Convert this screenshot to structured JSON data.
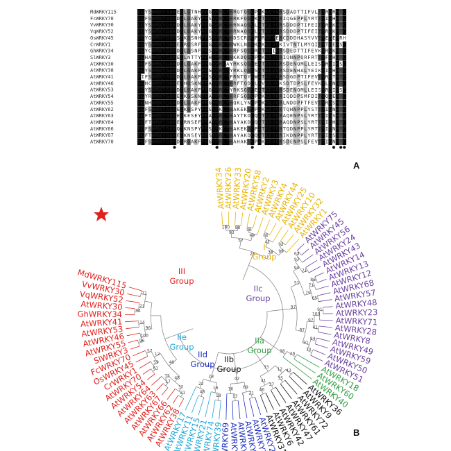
{
  "panel_a": {
    "label": "A",
    "sequences": [
      {
        "name": "MdWRKY115",
        "seq": "DGYSWRKYGQKEILGTNHPRGYYRCTHRGTQGCPAKKQVQRSDADTTIFVLTYRGRHTC"
      },
      {
        "name": "FcWRKY70",
        "seq": "DGFSWRKYGQKDILGAKYPRSYYRCTHRKFQGCKATKQVQRIQGEPPLYRTTYIGHHTC"
      },
      {
        "name": "VvWRKY30",
        "seq": "DGYSWRKYGQKDILGAKYPRGYYRCTHRNAQGCLATKQVQRSDDDPTIFEITYRGKHTC"
      },
      {
        "name": "VqWRKY52",
        "seq": "DGYSWRKYGQKDILGAKYPRGYYRCTHRNAQGCLATKQVQRSDDDPTIFEITYRGKHTC"
      },
      {
        "name": "OsWRKY45",
        "seq": "DGYQWRKYGQKSIKGSNHPRSYYRCTHDSCRGCPARKQVERCDDDHASYVVTYEGEHRH"
      },
      {
        "name": "CrWRKY1",
        "seq": "DGYSWRKYGQKEIRGSRFPRGYYRCTHWKLNGCKAKKQVQKIVTNTLMYQITYTGEHSC"
      },
      {
        "name": "GhWRKY34",
        "seq": "DGYCWRKYGQKDILGSNFPRSYYRCTHRFSQGCRATKQIQRSDEDTTIFEVKYRGKHTC"
      },
      {
        "name": "SlWRKY3",
        "seq": "DGHAWRKYGQKEILNTTYPRHYYRCTHKKDQGCPAKKQVQRIQNNPQRFRTTYFGHHTC"
      },
      {
        "name": "AtWRKY30",
        "seq": "DGFSWRKYGQKDILGAKFPRGYYRCAYRKSQGCEATKQVQRSDENQMLLEISYRGIHSC"
      },
      {
        "name": "AtWRKY38",
        "seq": "DGYSWRKYGQKDILGAKFPRGYYRCTYRKLQGCSATKQVQRSDENHALYEIKYIGHHTC"
      },
      {
        "name": "AtWRKY41",
        "seq": "DIFSWRKYGQKDILGAKFPRSYYRCTFRNTQYCWATKQVQRSDGDPTIFEVTYRGTHTC"
      },
      {
        "name": "AtWRKY46",
        "seq": "DGHCWRKYGQKEIHGSKNPRAYYRCTHRFTQDCLAVKQVQKSDTDPSLFEVKYLGNHTC"
      },
      {
        "name": "AtWRKY53",
        "seq": "DGYSWRKYGQKDILGAKFPRGYYRCTYRKSQGCEATKQVQRSDENQMLLEISYRGIHSC"
      },
      {
        "name": "AtWRKY54",
        "seq": "DGYRWRKYGQKEIKGSKNPRAYYRCTHRFSQGCPAKKQVQRIQDDPSMFDITYQGEHTC"
      },
      {
        "name": "AtWRKY55",
        "seq": "DGNHWRKYGQKDILGAKFPRGYYRCTHQKLYNCPAKKQVQRLNDDPFTFEVTYRGSHTC"
      },
      {
        "name": "AtWRKY62",
        "seq": "DGFSWRKYGQKEIKGSPYPRSYYKCTHAKEKGCPAKKQVQRTQHNPPLYSTTYIGNHTC"
      },
      {
        "name": "AtWRKY63",
        "seq": "DGFTWRKYGQKEIKESEYPRAYYRCTHAYTKDCQATKQVQRAQENPSLYRTTYIGSHTC"
      },
      {
        "name": "AtWRKY64",
        "seq": "DGFTWRKYGQKEIRNSEFPRAYYRCTHAYAKDCQATKQVQRAQDNPSLYRTTYIGHHTC"
      },
      {
        "name": "AtWRKY66",
        "seq": "DGFSWRKYGQKQIKNSPYPRSYYKCTHAKEKGCPATKQVQRTQDNPPLYRTTYIGNHTC"
      },
      {
        "name": "AtWRKY67",
        "seq": "DGFTWRKYGQKEIKNSEYPRSYYRCTHAYAKDCQATKQVQRIKDNPPLYRTTYIGSHTC"
      },
      {
        "name": "AtWRKY70",
        "seq": "DGFSWRKYGQKDIRGAKFPRGYYRCTHAHAKGCPAKKQVQRSDENPSLFEVTYIGNHTC"
      }
    ]
  },
  "panel_b": {
    "label": "B",
    "groups": [
      {
        "label": "I",
        "sub": "Group",
        "color": "#e8b400"
      },
      {
        "label": "IIa",
        "sub": "Group",
        "color": "#2e9e3f"
      },
      {
        "label": "IIb",
        "sub": "Group",
        "color": "#111111"
      },
      {
        "label": "IIc",
        "sub": "Group",
        "color": "#6b3fa0"
      },
      {
        "label": "IId",
        "sub": "Group",
        "color": "#1f2fbf"
      },
      {
        "label": "IIe",
        "sub": "Group",
        "color": "#1ea6d6"
      },
      {
        "label": "III",
        "sub": "Group",
        "color": "#e0201c"
      }
    ],
    "leaves": [
      {
        "name": "AtWRKY34",
        "g": 0
      },
      {
        "name": "AtWRKY26",
        "g": 0
      },
      {
        "name": "AtWRKY33",
        "g": 0
      },
      {
        "name": "AtWRKY20",
        "g": 0
      },
      {
        "name": "AtWRKY58",
        "g": 0
      },
      {
        "name": "AtWRKY2",
        "g": 0
      },
      {
        "name": "AtWRKY3",
        "g": 0
      },
      {
        "name": "AtWRKY4",
        "g": 0
      },
      {
        "name": "AtWRKY44",
        "g": 0
      },
      {
        "name": "AtWRKY25",
        "g": 0
      },
      {
        "name": "AtWRKY10",
        "g": 0
      },
      {
        "name": "AtWRKY32",
        "g": 0
      },
      {
        "name": "AtWRKY1",
        "g": 0
      },
      {
        "name": "AtWRKY75",
        "g": 3
      },
      {
        "name": "AtWRKY45",
        "g": 3
      },
      {
        "name": "AtWRKY56",
        "g": 3
      },
      {
        "name": "AtWRKY24",
        "g": 3
      },
      {
        "name": "AtWRKY43",
        "g": 3
      },
      {
        "name": "AtWRKY14",
        "g": 3
      },
      {
        "name": "AtWRKY13",
        "g": 3
      },
      {
        "name": "AtWRKY12",
        "g": 3
      },
      {
        "name": "AtWRKY68",
        "g": 3
      },
      {
        "name": "AtWRKY57",
        "g": 3
      },
      {
        "name": "AtWRKY48",
        "g": 3
      },
      {
        "name": "AtWRKY23",
        "g": 3
      },
      {
        "name": "AtWRKY71",
        "g": 3
      },
      {
        "name": "AtWRKY28",
        "g": 3
      },
      {
        "name": "AtWRKY8",
        "g": 3
      },
      {
        "name": "AtWRKY49",
        "g": 3
      },
      {
        "name": "AtWRKY59",
        "g": 3
      },
      {
        "name": "AtWRKY50",
        "g": 3
      },
      {
        "name": "AtWRKY51",
        "g": 3
      },
      {
        "name": "AtWRKY18",
        "g": 1
      },
      {
        "name": "AtWRKY60",
        "g": 1
      },
      {
        "name": "AtWRKY40",
        "g": 1
      },
      {
        "name": "AtWRKY36",
        "g": 2
      },
      {
        "name": "AtWRKY9",
        "g": 2
      },
      {
        "name": "AtWRKY72",
        "g": 2
      },
      {
        "name": "AtWRKY61",
        "g": 2
      },
      {
        "name": "AtWRKY47",
        "g": 2
      },
      {
        "name": "AtWRKY42",
        "g": 2
      },
      {
        "name": "AtWRKY6",
        "g": 2
      },
      {
        "name": "AtWRKY31",
        "g": 2
      },
      {
        "name": "AtWRKY22",
        "g": 4
      },
      {
        "name": "AtWRKY29",
        "g": 4
      },
      {
        "name": "AtWRKY27",
        "g": 4
      },
      {
        "name": "AtWRKY35",
        "g": 4
      },
      {
        "name": "AtWRKY65",
        "g": 4
      },
      {
        "name": "AtWRKY69",
        "g": 4
      },
      {
        "name": "AtWRKY39",
        "g": 5
      },
      {
        "name": "AtWRKY74",
        "g": 5
      },
      {
        "name": "AtWRKY21",
        "g": 5
      },
      {
        "name": "AtWRKY15",
        "g": 5
      },
      {
        "name": "AtWRKY11",
        "g": 5
      },
      {
        "name": "AtWRKY17",
        "g": 5
      },
      {
        "name": "AtWRKY38",
        "g": 6
      },
      {
        "name": "AtWRKY62",
        "g": 6
      },
      {
        "name": "AtWRKY66",
        "g": 6
      },
      {
        "name": "AtWRKY67",
        "g": 6
      },
      {
        "name": "AtWRKY63",
        "g": 6
      },
      {
        "name": "AtWRKY64",
        "g": 6
      },
      {
        "name": "AtWRKY54",
        "g": 6
      },
      {
        "name": "AtWRKY70",
        "g": 6
      },
      {
        "name": "CrWRKY1",
        "g": 6
      },
      {
        "name": "OsWRKY45",
        "g": 6
      },
      {
        "name": "FcWRKY70",
        "g": 6
      },
      {
        "name": "SlWRKY3",
        "g": 6
      },
      {
        "name": "AtWRKY55",
        "g": 6
      },
      {
        "name": "AtWRKY46",
        "g": 6
      },
      {
        "name": "AtWRKY53",
        "g": 6
      },
      {
        "name": "AtWRKY41",
        "g": 6
      },
      {
        "name": "GhWRKY34",
        "g": 6
      },
      {
        "name": "AtWRKY30",
        "g": 6
      },
      {
        "name": "VqWRKY52",
        "g": 6
      },
      {
        "name": "VvWRKY30",
        "g": 6
      },
      {
        "name": "MdWRKY115",
        "g": 6
      }
    ],
    "bootstraps": [
      "100",
      "98",
      "93",
      "95",
      "99",
      "57",
      "81",
      "41",
      "91",
      "99",
      "38",
      "25",
      "63",
      "97",
      "71",
      "94",
      "86",
      "71",
      "65",
      "79",
      "51",
      "91",
      "100",
      "41",
      "97",
      "84",
      "70",
      "91",
      "87",
      "97",
      "26",
      "38",
      "43",
      "35",
      "12",
      "37",
      "46",
      "41",
      "33",
      "21",
      "69",
      "13",
      "16",
      "42",
      "18",
      "16",
      "48",
      "22",
      "28",
      "21",
      "37",
      "17",
      "35",
      "48",
      "61",
      "59",
      "57",
      "12",
      "46",
      "96",
      "100",
      "14",
      "96",
      "94",
      "21",
      "71"
    ],
    "highlight_marker": "star"
  }
}
